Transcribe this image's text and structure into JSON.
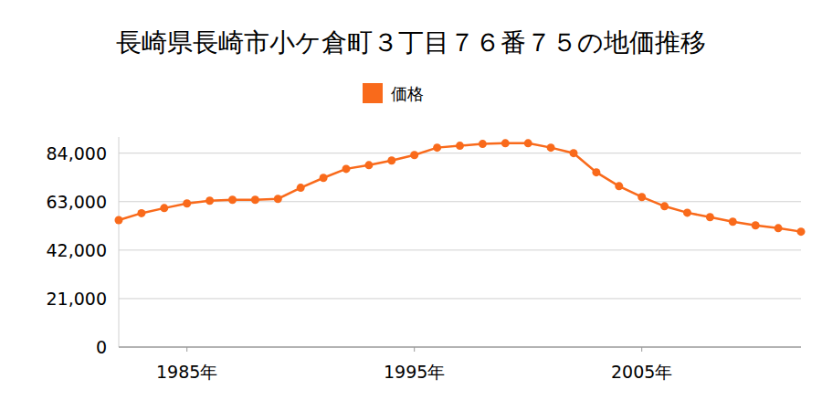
{
  "chart_data": {
    "type": "line",
    "title": "長崎県長崎市小ケ倉町３丁目７６番７５の地価推移",
    "x": [
      1982,
      1983,
      1984,
      1985,
      1986,
      1987,
      1988,
      1989,
      1990,
      1991,
      1992,
      1993,
      1994,
      1995,
      1996,
      1997,
      1998,
      1999,
      2000,
      2001,
      2002,
      2003,
      2004,
      2005,
      2006,
      2007,
      2008,
      2009,
      2010,
      2011,
      2012
    ],
    "series": [
      {
        "name": "価格",
        "color": "#f96a1b",
        "marker": "circle",
        "values": [
          55000,
          58000,
          60200,
          62200,
          63400,
          63800,
          63800,
          64200,
          69000,
          73300,
          77200,
          78800,
          80800,
          83200,
          86400,
          87200,
          88000,
          88300,
          88300,
          86400,
          84000,
          75700,
          69700,
          65000,
          61000,
          58200,
          56300,
          54300,
          52700,
          51500,
          50000
        ]
      }
    ],
    "xlim": [
      1982,
      2012
    ],
    "xticks": [
      {
        "value": 1985,
        "label": "1985年"
      },
      {
        "value": 1995,
        "label": "1995年"
      },
      {
        "value": 2005,
        "label": "2005年"
      }
    ],
    "ylim": [
      0,
      91000
    ],
    "yticks": [
      0,
      {
        "value": 21000,
        "label": "21,000"
      },
      {
        "value": 42000,
        "label": "42,000"
      },
      {
        "value": 63000,
        "label": "63,000"
      },
      {
        "value": 84000,
        "label": "84,000"
      }
    ],
    "grid": true,
    "legend": "top"
  }
}
